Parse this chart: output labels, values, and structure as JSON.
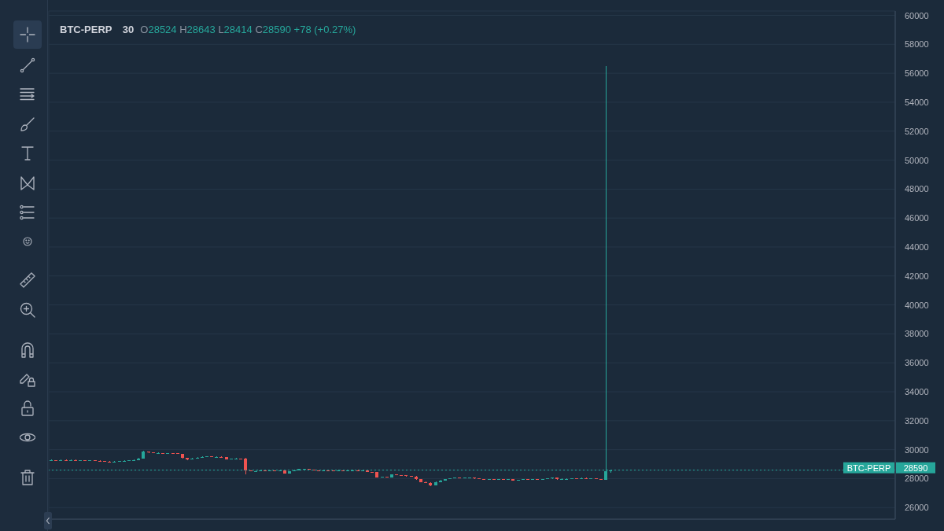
{
  "chart_data": {
    "type": "candlestick",
    "title": "BTC-PERP 30",
    "annotations": [
      "O28524 H28643 L28414 C28590 +78 (+0.27%)"
    ],
    "categories": [
      null,
      null,
      null,
      null,
      null,
      null,
      null,
      null,
      null,
      null,
      null,
      null,
      null,
      null,
      null,
      null,
      null,
      null,
      null,
      null,
      null,
      null,
      null,
      null,
      null,
      null,
      null,
      null,
      null,
      null,
      null,
      null,
      null,
      null,
      null,
      null,
      null,
      null,
      null,
      null,
      null,
      null,
      null,
      null,
      null,
      null,
      null,
      null,
      null,
      null,
      null,
      null,
      null,
      null,
      null,
      null,
      null,
      null,
      null,
      null,
      null,
      null,
      null,
      null,
      null,
      null,
      null,
      null,
      null,
      null,
      null,
      null,
      null,
      null,
      null,
      null,
      null,
      null,
      null,
      null,
      null,
      null,
      null,
      null,
      null,
      null,
      null,
      null,
      null,
      null,
      null,
      null,
      null,
      null,
      null,
      null,
      null,
      null,
      null,
      null,
      null,
      null,
      null,
      null,
      null,
      null,
      null,
      null,
      null,
      null,
      null,
      null,
      null,
      null,
      null,
      null,
      null,
      null,
      null,
      null,
      null,
      null,
      null,
      null,
      null,
      null,
      null,
      null,
      null,
      null,
      null,
      null,
      null,
      null,
      null,
      null,
      null,
      null,
      null,
      null,
      null,
      null,
      null,
      null,
      null,
      null,
      null,
      null,
      null,
      null,
      null,
      null,
      null,
      null,
      null,
      null,
      null,
      null,
      null,
      null,
      null,
      null,
      null,
      null,
      null,
      null,
      null,
      null,
      null,
      null,
      null,
      null,
      null,
      null
    ],
    "ohlc": [
      [
        29250,
        29310,
        29230,
        29280
      ],
      [
        29280,
        29300,
        29240,
        29260
      ],
      [
        29260,
        29310,
        29250,
        29290
      ],
      [
        29290,
        29310,
        29250,
        29270
      ],
      [
        29270,
        29320,
        29260,
        29300
      ],
      [
        29300,
        29310,
        29240,
        29260
      ],
      [
        29260,
        29300,
        29240,
        29280
      ],
      [
        29280,
        29290,
        29230,
        29250
      ],
      [
        29250,
        29290,
        29240,
        29270
      ],
      [
        29270,
        29280,
        29220,
        29240
      ],
      [
        29240,
        29250,
        29180,
        29200
      ],
      [
        29200,
        29220,
        29160,
        29180
      ],
      [
        29180,
        29200,
        29140,
        29160
      ],
      [
        29160,
        29210,
        29150,
        29190
      ],
      [
        29190,
        29240,
        29180,
        29220
      ],
      [
        29220,
        29260,
        29200,
        29240
      ],
      [
        29240,
        29280,
        29230,
        29260
      ],
      [
        29260,
        29320,
        29250,
        29300
      ],
      [
        29300,
        29420,
        29290,
        29400
      ],
      [
        29400,
        29900,
        29380,
        29850
      ],
      [
        29850,
        29880,
        29780,
        29800
      ],
      [
        29800,
        29820,
        29740,
        29760
      ],
      [
        29760,
        29800,
        29740,
        29780
      ],
      [
        29780,
        29790,
        29730,
        29750
      ],
      [
        29750,
        29790,
        29740,
        29770
      ],
      [
        29770,
        29780,
        29720,
        29740
      ],
      [
        29740,
        29750,
        29700,
        29720
      ],
      [
        29720,
        29730,
        29400,
        29420
      ],
      [
        29420,
        29440,
        29300,
        29320
      ],
      [
        29320,
        29420,
        29310,
        29400
      ],
      [
        29400,
        29480,
        29390,
        29460
      ],
      [
        29460,
        29520,
        29450,
        29500
      ],
      [
        29500,
        29540,
        29480,
        29520
      ],
      [
        29520,
        29530,
        29480,
        29500
      ],
      [
        29500,
        29530,
        29490,
        29510
      ],
      [
        29510,
        29520,
        29460,
        29480
      ],
      [
        29480,
        29490,
        29330,
        29350
      ],
      [
        29350,
        29400,
        29340,
        29380
      ],
      [
        29380,
        29420,
        29360,
        29400
      ],
      [
        29400,
        29410,
        29370,
        29390
      ],
      [
        29390,
        29420,
        28320,
        28560
      ],
      [
        28560,
        28580,
        28490,
        28520
      ],
      [
        28520,
        28560,
        28510,
        28540
      ],
      [
        28540,
        28580,
        28530,
        28560
      ],
      [
        28560,
        28570,
        28510,
        28530
      ],
      [
        28530,
        28570,
        28520,
        28550
      ],
      [
        28550,
        28560,
        28520,
        28540
      ],
      [
        28540,
        28580,
        28530,
        28560
      ],
      [
        28560,
        28570,
        28330,
        28360
      ],
      [
        28360,
        28540,
        28350,
        28520
      ],
      [
        28520,
        28600,
        28510,
        28580
      ],
      [
        28580,
        28680,
        28570,
        28660
      ],
      [
        28660,
        28700,
        28640,
        28680
      ],
      [
        28680,
        28690,
        28600,
        28620
      ],
      [
        28620,
        28630,
        28560,
        28580
      ],
      [
        28580,
        28590,
        28540,
        28560
      ],
      [
        28560,
        28610,
        28550,
        28590
      ],
      [
        28590,
        28600,
        28550,
        28570
      ],
      [
        28570,
        28580,
        28530,
        28550
      ],
      [
        28550,
        28600,
        28540,
        28580
      ],
      [
        28580,
        28590,
        28540,
        28560
      ],
      [
        28560,
        28590,
        28550,
        28570
      ],
      [
        28570,
        28610,
        28560,
        28590
      ],
      [
        28590,
        28600,
        28550,
        28570
      ],
      [
        28570,
        28600,
        28560,
        28580
      ],
      [
        28580,
        28590,
        28440,
        28460
      ],
      [
        28460,
        28480,
        28420,
        28440
      ],
      [
        28440,
        28450,
        28060,
        28080
      ],
      [
        28080,
        28140,
        28060,
        28120
      ],
      [
        28120,
        28130,
        28080,
        28100
      ],
      [
        28100,
        28320,
        28090,
        28300
      ],
      [
        28300,
        28310,
        28230,
        28250
      ],
      [
        28250,
        28260,
        28200,
        28220
      ],
      [
        28220,
        28230,
        28160,
        28180
      ],
      [
        28180,
        28200,
        28140,
        28160
      ],
      [
        28160,
        28170,
        27930,
        27950
      ],
      [
        27950,
        27960,
        27760,
        27780
      ],
      [
        27780,
        27790,
        27700,
        27720
      ],
      [
        27720,
        27760,
        27480,
        27560
      ],
      [
        27560,
        27800,
        27550,
        27780
      ],
      [
        27780,
        27900,
        27770,
        27880
      ],
      [
        27880,
        27980,
        27870,
        27960
      ],
      [
        27960,
        28040,
        27950,
        28020
      ],
      [
        28020,
        28080,
        28010,
        28060
      ],
      [
        28060,
        28070,
        28020,
        28040
      ],
      [
        28040,
        28090,
        28030,
        28070
      ],
      [
        28070,
        28100,
        28060,
        28080
      ],
      [
        28080,
        28090,
        27990,
        28010
      ],
      [
        28010,
        28020,
        27960,
        27980
      ],
      [
        27980,
        27990,
        27940,
        27960
      ],
      [
        27960,
        27990,
        27950,
        27970
      ],
      [
        27970,
        27980,
        27920,
        27940
      ],
      [
        27940,
        27980,
        27930,
        27960
      ],
      [
        27960,
        27970,
        27930,
        27950
      ],
      [
        27950,
        27990,
        27940,
        27970
      ],
      [
        27970,
        27980,
        27860,
        27880
      ],
      [
        27880,
        27940,
        27870,
        27920
      ],
      [
        27920,
        27970,
        27910,
        27950
      ],
      [
        27950,
        27960,
        27910,
        27930
      ],
      [
        27930,
        27980,
        27920,
        27960
      ],
      [
        27960,
        27970,
        27920,
        27940
      ],
      [
        27940,
        27990,
        27930,
        27970
      ],
      [
        27970,
        28020,
        27960,
        28000
      ],
      [
        28000,
        28080,
        27990,
        28060
      ],
      [
        28060,
        28070,
        27940,
        27960
      ],
      [
        27960,
        28000,
        27950,
        27980
      ],
      [
        27980,
        28010,
        27970,
        27990
      ],
      [
        27990,
        28040,
        27980,
        28020
      ],
      [
        28020,
        28030,
        27990,
        28010
      ],
      [
        28010,
        28070,
        28000,
        28050
      ],
      [
        28050,
        28060,
        27980,
        28000
      ],
      [
        28000,
        28050,
        27990,
        28030
      ],
      [
        28030,
        28040,
        27950,
        27970
      ],
      [
        27970,
        27980,
        27920,
        27940
      ],
      [
        27940,
        56500,
        27920,
        28512
      ],
      [
        28524,
        28643,
        28414,
        28590
      ],
      null,
      null,
      null,
      null,
      null,
      null,
      null,
      null,
      null,
      null,
      null,
      null,
      null,
      null,
      null,
      null,
      null,
      null,
      null,
      null,
      null,
      null,
      null,
      null,
      null,
      null,
      null,
      null,
      null,
      null,
      null,
      null,
      null,
      null,
      null,
      null,
      null,
      null,
      null,
      null,
      null,
      null,
      null,
      null,
      null,
      null,
      null,
      null,
      null,
      null,
      null,
      null,
      null,
      null,
      null,
      null,
      null,
      null
    ],
    "colors": [
      "#26a69a",
      "#ef5350",
      "#26a69a",
      "#ef5350",
      "#26a69a",
      "#ef5350",
      "#26a69a",
      "#ef5350",
      "#26a69a",
      "#ef5350",
      "#ef5350",
      "#ef5350",
      "#ef5350",
      "#26a69a",
      "#26a69a",
      "#26a69a",
      "#26a69a",
      "#26a69a",
      "#26a69a",
      "#26a69a",
      "#ef5350",
      "#ef5350",
      "#26a69a",
      "#ef5350",
      "#26a69a",
      "#ef5350",
      "#ef5350",
      "#ef5350",
      "#ef5350",
      "#26a69a",
      "#26a69a",
      "#26a69a",
      "#26a69a",
      "#ef5350",
      "#26a69a",
      "#ef5350",
      "#ef5350",
      "#26a69a",
      "#26a69a",
      "#ef5350",
      "#ef5350",
      "#ef5350",
      "#26a69a",
      "#26a69a",
      "#ef5350",
      "#26a69a",
      "#ef5350",
      "#26a69a",
      "#ef5350",
      "#26a69a",
      "#26a69a",
      "#26a69a",
      "#26a69a",
      "#ef5350",
      "#ef5350",
      "#ef5350",
      "#26a69a",
      "#ef5350",
      "#ef5350",
      "#26a69a",
      "#ef5350",
      "#26a69a",
      "#26a69a",
      "#ef5350",
      "#26a69a",
      "#ef5350",
      "#ef5350",
      "#ef5350",
      "#26a69a",
      "#ef5350",
      "#26a69a",
      "#ef5350",
      "#ef5350",
      "#ef5350",
      "#ef5350",
      "#ef5350",
      "#ef5350",
      "#ef5350",
      "#ef5350",
      "#26a69a",
      "#26a69a",
      "#26a69a",
      "#26a69a",
      "#26a69a",
      "#ef5350",
      "#26a69a",
      "#26a69a",
      "#ef5350",
      "#ef5350",
      "#ef5350",
      "#26a69a",
      "#ef5350",
      "#26a69a",
      "#ef5350",
      "#26a69a",
      "#ef5350",
      "#26a69a",
      "#26a69a",
      "#ef5350",
      "#26a69a",
      "#ef5350",
      "#26a69a",
      "#26a69a",
      "#26a69a",
      "#ef5350",
      "#26a69a",
      "#26a69a",
      "#26a69a",
      "#ef5350",
      "#26a69a",
      "#ef5350",
      "#26a69a",
      "#ef5350",
      "#ef5350",
      "#26a69a",
      "#26a69a",
      null,
      null,
      null,
      null,
      null,
      null,
      null,
      null,
      null,
      null,
      null,
      null,
      null,
      null,
      null,
      null,
      null,
      null,
      null,
      null,
      null,
      null,
      null,
      null,
      null,
      null,
      null,
      null,
      null,
      null,
      null,
      null,
      null,
      null,
      null,
      null,
      null,
      null,
      null,
      null,
      null,
      null,
      null,
      null,
      null,
      null,
      null,
      null,
      null,
      null,
      null,
      null,
      null,
      null,
      null,
      null,
      null,
      null
    ],
    "ylim": [
      25200,
      60300
    ],
    "yticks": [
      26000,
      28000,
      28590,
      30000,
      32000,
      34000,
      36000,
      38000,
      40000,
      42000,
      44000,
      46000,
      48000,
      50000,
      52000,
      54000,
      56000,
      58000,
      60000
    ],
    "grid": true,
    "tick_labels": "y",
    "ref_lines": [
      {
        "axis": "y",
        "value": 28590,
        "label": "BTC-PERP",
        "color": "#26a69a",
        "line_style": "dotted"
      }
    ]
  }
}
